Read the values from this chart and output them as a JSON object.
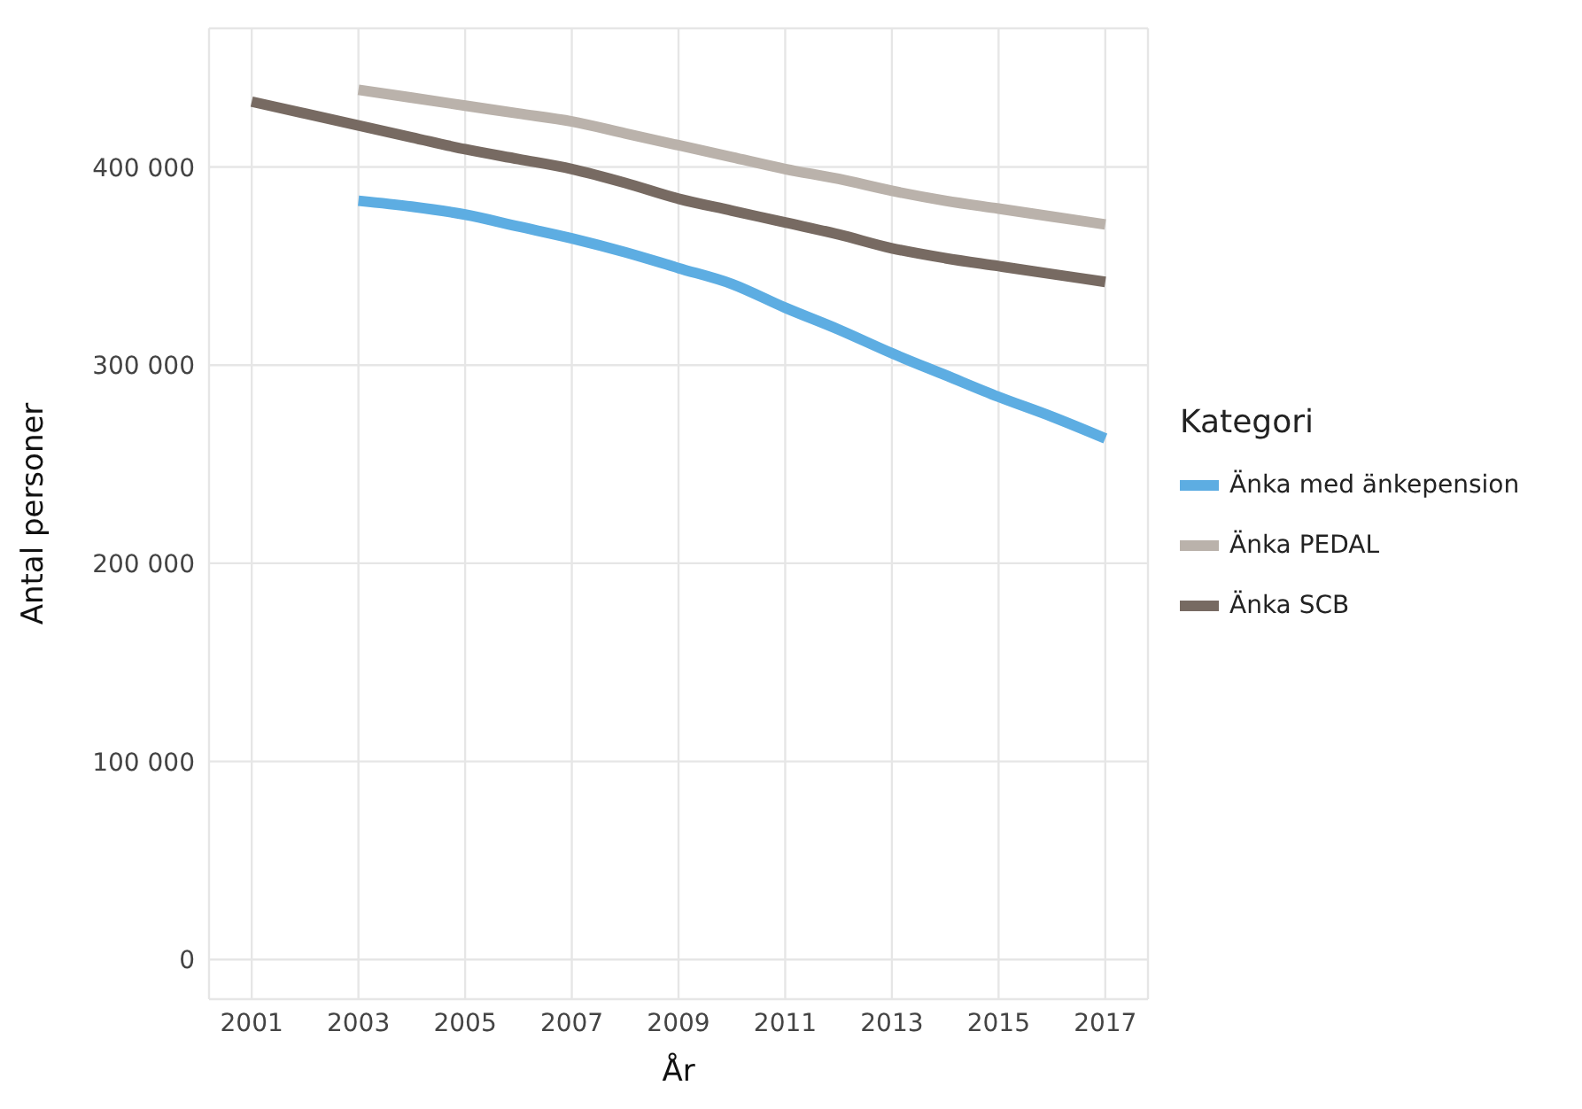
{
  "chart_data": {
    "type": "line",
    "xlabel": "År",
    "ylabel": "Antal personer",
    "legend_title": "Kategori",
    "legend": "right",
    "grid": true,
    "line_style": "solid",
    "marker": "none",
    "x": [
      2001,
      2002,
      2003,
      2004,
      2005,
      2006,
      2007,
      2008,
      2009,
      2010,
      2011,
      2012,
      2013,
      2014,
      2015,
      2016,
      2017
    ],
    "xlim": [
      2000.2,
      2017.8
    ],
    "xticks": [
      2001,
      2003,
      2005,
      2007,
      2009,
      2011,
      2013,
      2015,
      2017
    ],
    "ylim": [
      -20000,
      470000
    ],
    "yticks": [
      {
        "value": 0,
        "label": "0"
      },
      {
        "value": 100000,
        "label": "100 000"
      },
      {
        "value": 200000,
        "label": "200 000"
      },
      {
        "value": 300000,
        "label": "300 000"
      },
      {
        "value": 400000,
        "label": "400 000"
      }
    ],
    "series": [
      {
        "name": "Änka med änkepension",
        "color": "#5dade2",
        "values": [
          null,
          null,
          383000,
          380000,
          376000,
          370000,
          364000,
          357000,
          349000,
          341000,
          329000,
          318000,
          306000,
          295000,
          284000,
          274000,
          263000
        ]
      },
      {
        "name": "Änka PEDAL",
        "color": "#bab2ab",
        "values": [
          null,
          null,
          439000,
          435000,
          431000,
          427000,
          423000,
          417000,
          411000,
          405000,
          399000,
          394000,
          388000,
          383000,
          379000,
          375000,
          371000
        ]
      },
      {
        "name": "Änka SCB",
        "color": "#776a62",
        "values": [
          433000,
          427000,
          421000,
          415000,
          409000,
          404000,
          399000,
          392000,
          384000,
          378000,
          372000,
          366000,
          359000,
          354000,
          350000,
          346000,
          342000
        ]
      }
    ]
  }
}
